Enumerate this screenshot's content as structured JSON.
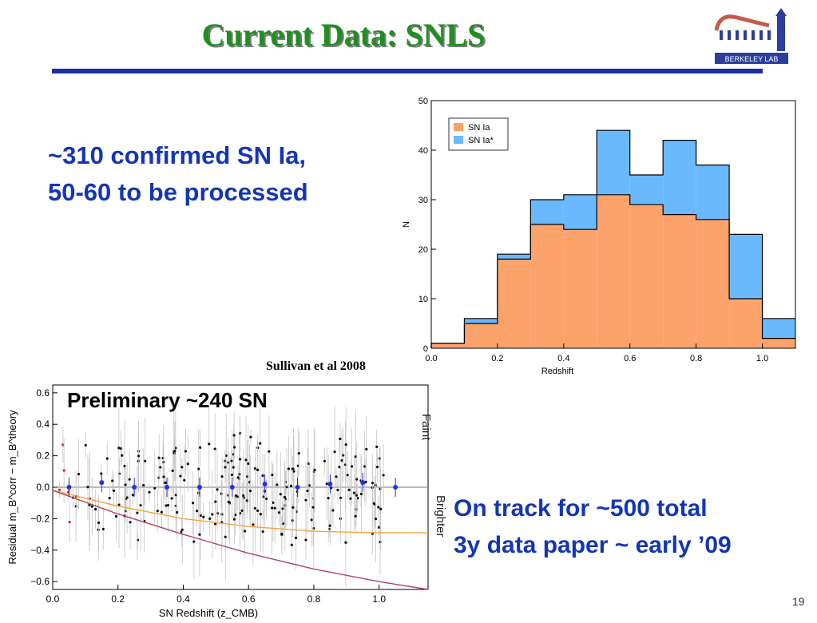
{
  "slide": {
    "title": "Current Data: SNLS",
    "left_text": [
      "~310 confirmed SN Ia,",
      "50-60 to be processed"
    ],
    "right_text": [
      "On track for ~500 total",
      "3y data paper ~ early ’09"
    ],
    "citation": "Sullivan et al 2008",
    "page_number": "19",
    "logo_text": "BERKELEY LAB",
    "colors": {
      "title": "#1f8f1f",
      "rule": "#1c2fa0",
      "text": "#1436b4"
    }
  },
  "chart_data": [
    {
      "type": "bar",
      "subtype": "stacked-histogram",
      "xlabel": "Redshift",
      "ylabel": "N",
      "xlim": [
        0.0,
        1.1
      ],
      "ylim": [
        0,
        50
      ],
      "xticks": [
        "0.0",
        "0.2",
        "0.4",
        "0.6",
        "0.8",
        "1.0"
      ],
      "yticks": [
        "0",
        "10",
        "20",
        "30",
        "40",
        "50"
      ],
      "bin_edges": [
        0.0,
        0.1,
        0.2,
        0.3,
        0.4,
        0.5,
        0.6,
        0.7,
        0.8,
        0.9,
        1.0,
        1.1
      ],
      "series": [
        {
          "name": "SN Ia",
          "color": "#fca26b",
          "values": [
            1,
            5,
            18,
            25,
            24,
            31,
            29,
            27,
            26,
            10,
            2
          ]
        },
        {
          "name": "SN Ia*",
          "color": "#6ab9ff",
          "values": [
            0,
            1,
            1,
            5,
            7,
            13,
            6,
            15,
            11,
            13,
            4
          ]
        }
      ],
      "legend": "top-left"
    },
    {
      "type": "scatter",
      "xlabel": "SN Redshift (z_CMB)",
      "ylabel": "Residual m_B^corr − m_B^theory",
      "annotation": "Preliminary ~240 SN",
      "xlim": [
        0.0,
        1.15
      ],
      "ylim": [
        -0.65,
        0.65
      ],
      "xticks": [
        "0.0",
        "0.2",
        "0.4",
        "0.6",
        "0.8",
        "1.0"
      ],
      "yticks": [
        "−0.6",
        "−0.4",
        "−0.2",
        "0.0",
        "0.2",
        "0.4",
        "0.6"
      ],
      "side_labels": {
        "upper": "Faint",
        "lower": "Brighter"
      },
      "binned_points": {
        "color": "#2233dd",
        "x": [
          0.05,
          0.15,
          0.25,
          0.35,
          0.45,
          0.55,
          0.65,
          0.75,
          0.85,
          0.95,
          1.05
        ],
        "y": [
          0.0,
          0.03,
          0.0,
          0.0,
          0.0,
          0.0,
          0.02,
          0.0,
          0.02,
          0.03,
          0.0
        ]
      },
      "lines": [
        {
          "name": "model-orange",
          "color": "#f3a43a",
          "x": [
            0.0,
            0.2,
            0.4,
            0.6,
            0.8,
            1.0,
            1.15
          ],
          "y": [
            -0.02,
            -0.12,
            -0.2,
            -0.25,
            -0.28,
            -0.29,
            -0.29
          ]
        },
        {
          "name": "model-red",
          "color": "#b0465a",
          "x": [
            0.0,
            0.2,
            0.4,
            0.6,
            0.8,
            1.0,
            1.15
          ],
          "y": [
            -0.02,
            -0.17,
            -0.3,
            -0.42,
            -0.52,
            -0.6,
            -0.65
          ]
        }
      ]
    }
  ]
}
